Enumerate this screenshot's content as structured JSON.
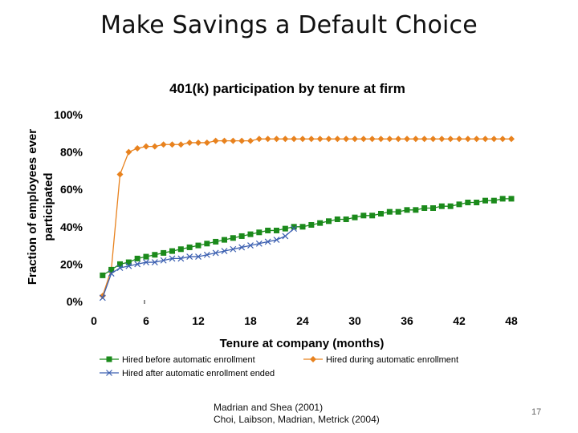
{
  "slide": {
    "title": "Make Savings a Default Choice",
    "source_lines": [
      "Madrian and Shea (2001)",
      "Choi, Laibson, Madrian, Metrick (2004)"
    ],
    "page_number": "17"
  },
  "chart_data": {
    "type": "line",
    "title": "401(k) participation by tenure at firm",
    "xlabel": "Tenure at company (months)",
    "ylabel_lines": [
      "Fraction of employees ever",
      "participated"
    ],
    "xlim": [
      0,
      48
    ],
    "ylim": [
      0,
      100
    ],
    "x_ticks": [
      0,
      6,
      12,
      18,
      24,
      30,
      36,
      42,
      48
    ],
    "x_tick_labels": [
      "0",
      "6",
      "12",
      "18",
      "24",
      "30",
      "36",
      "42",
      "48"
    ],
    "y_ticks": [
      0,
      20,
      40,
      60,
      80,
      100
    ],
    "y_tick_labels": [
      "0%",
      "20%",
      "40%",
      "60%",
      "80%",
      "100%"
    ],
    "grid": false,
    "legend_position": "bottom",
    "series": [
      {
        "name": "Hired before automatic enrollment",
        "color": "#1b8a1b",
        "marker": "square",
        "x": [
          1,
          2,
          3,
          4,
          5,
          6,
          7,
          8,
          9,
          10,
          11,
          12,
          13,
          14,
          15,
          16,
          17,
          18,
          19,
          20,
          21,
          22,
          23,
          24,
          25,
          26,
          27,
          28,
          29,
          30,
          31,
          32,
          33,
          34,
          35,
          36,
          37,
          38,
          39,
          40,
          41,
          42,
          43,
          44,
          45,
          46,
          47,
          48
        ],
        "values": [
          14,
          17,
          20,
          21,
          23,
          24,
          25,
          26,
          27,
          28,
          29,
          30,
          31,
          32,
          33,
          34,
          35,
          36,
          37,
          38,
          38,
          39,
          40,
          40,
          41,
          42,
          43,
          44,
          44,
          45,
          46,
          46,
          47,
          48,
          48,
          49,
          49,
          50,
          50,
          51,
          51,
          52,
          53,
          53,
          54,
          54,
          55,
          55
        ]
      },
      {
        "name": "Hired during automatic enrollment",
        "color": "#e8821e",
        "marker": "diamond",
        "x": [
          1,
          2,
          3,
          4,
          5,
          6,
          7,
          8,
          9,
          10,
          11,
          12,
          13,
          14,
          15,
          16,
          17,
          18,
          19,
          20,
          21,
          22,
          23,
          24,
          25,
          26,
          27,
          28,
          29,
          30,
          31,
          32,
          33,
          34,
          35,
          36,
          37,
          38,
          39,
          40,
          41,
          42,
          43,
          44,
          45,
          46,
          47,
          48
        ],
        "values": [
          3,
          17,
          68,
          80,
          82,
          83,
          83,
          84,
          84,
          84,
          85,
          85,
          85,
          86,
          86,
          86,
          86,
          86,
          87,
          87,
          87,
          87,
          87,
          87,
          87,
          87,
          87,
          87,
          87,
          87,
          87,
          87,
          87,
          87,
          87,
          87,
          87,
          87,
          87,
          87,
          87,
          87,
          87,
          87,
          87,
          87,
          87,
          87
        ]
      },
      {
        "name": "Hired after automatic enrollment ended",
        "color": "#3b5fb0",
        "marker": "x",
        "x": [
          1,
          2,
          3,
          4,
          5,
          6,
          7,
          8,
          9,
          10,
          11,
          12,
          13,
          14,
          15,
          16,
          17,
          18,
          19,
          20,
          21,
          22,
          23
        ],
        "values": [
          2,
          15,
          18,
          19,
          20,
          21,
          21,
          22,
          23,
          23,
          24,
          24,
          25,
          26,
          27,
          28,
          29,
          30,
          31,
          32,
          33,
          35,
          39
        ]
      }
    ]
  }
}
